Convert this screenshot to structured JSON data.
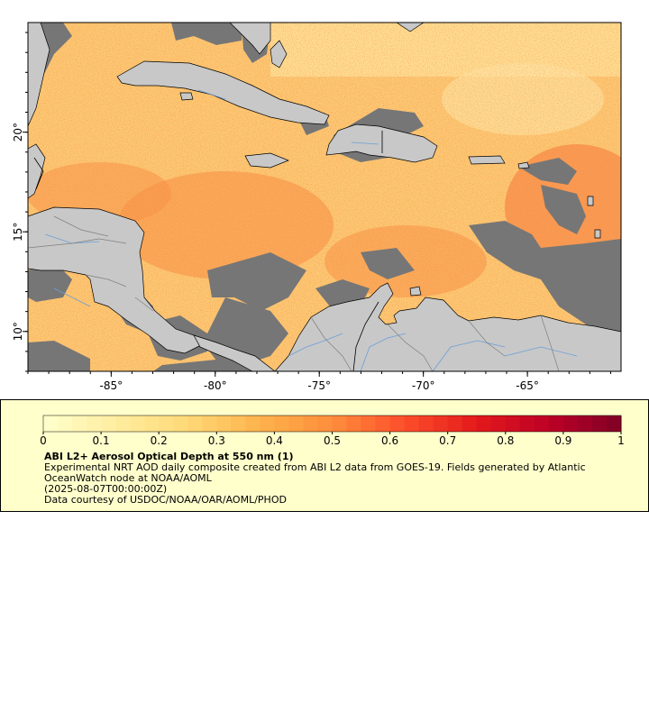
{
  "map": {
    "lon_range": [
      -89,
      -60.5
    ],
    "lat_range": [
      8,
      25.5
    ],
    "lon_ticks": [
      {
        "value": -85,
        "label": "-85°"
      },
      {
        "value": -80,
        "label": "-80°"
      },
      {
        "value": -75,
        "label": "-75°"
      },
      {
        "value": -70,
        "label": "-70°"
      },
      {
        "value": -65,
        "label": "-65°"
      }
    ],
    "lat_ticks": [
      {
        "value": 20,
        "label": "20°"
      },
      {
        "value": 15,
        "label": "15°"
      },
      {
        "value": 10,
        "label": "10°"
      }
    ],
    "colors": {
      "land": "#c8c8c8",
      "no_data": "#767676",
      "rivers": "#6a9fd8",
      "borders": "#7f7f7f",
      "coast": "#000000"
    }
  },
  "legend": {
    "background": "#ffffcc",
    "colorbar": {
      "min": 0,
      "max": 1,
      "tick_labels": [
        "0",
        "0.1",
        "0.2",
        "0.3",
        "0.4",
        "0.5",
        "0.6",
        "0.7",
        "0.8",
        "0.9",
        "1"
      ],
      "colors": [
        "#ffffcc",
        "#ffeda0",
        "#fed976",
        "#feb24c",
        "#fd8d3c",
        "#fc4e2a",
        "#e31a1c",
        "#bd0026",
        "#800026"
      ]
    },
    "title": "ABI L2+ Aerosol Optical Depth at 550 nm (1)",
    "line1": "Experimental NRT AOD daily composite created from ABI L2 data from GOES-19. Fields generated by Atlantic OceanWatch node at NOAA/AOML",
    "line2": "(2025-08-07T00:00:00Z)",
    "line3": "Data courtesy of USDOC/NOAA/OAR/AOML/PHOD"
  }
}
